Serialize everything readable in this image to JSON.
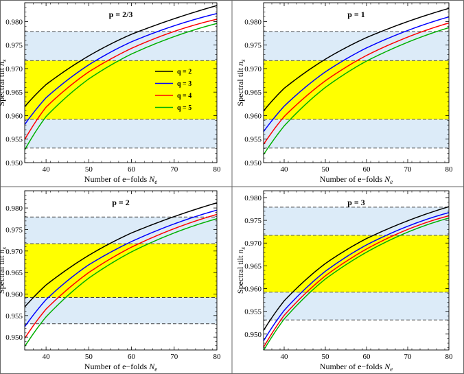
{
  "colors": {
    "q2": "#000000",
    "q3": "#0000ff",
    "q4": "#ff0000",
    "q5": "#00b000",
    "inner_band": "#ffff00",
    "outer_band": "#dcebf8",
    "band_border": "#444444"
  },
  "chart_data": [
    {
      "type": "line",
      "title": "p = 2/3",
      "xlabel": "Number of e−folds N_e",
      "ylabel": "Spectral tilt n_s",
      "xlim": [
        35,
        80
      ],
      "ylim": [
        0.95,
        0.984
      ],
      "xticks": [
        40,
        50,
        60,
        70,
        80
      ],
      "yticks": [
        0.95,
        0.955,
        0.96,
        0.965,
        0.97,
        0.975,
        0.98
      ],
      "ytick_labels": [
        "0.950",
        "0.955",
        "0.960",
        "0.965",
        "0.970",
        "0.975",
        "0.980"
      ],
      "bands": [
        {
          "name": "outer",
          "range": [
            0.9531,
            0.9779
          ]
        },
        {
          "name": "inner",
          "range": [
            0.9592,
            0.9717
          ]
        }
      ],
      "legend": {
        "position": "center-right",
        "entries": [
          "q = 2",
          "q = 3",
          "q = 4",
          "q = 5"
        ]
      },
      "series": [
        {
          "name": "q = 2",
          "x": [
            35,
            40,
            50,
            60,
            70,
            80
          ],
          "y": [
            0.9619,
            0.9666,
            0.9727,
            0.9773,
            0.9806,
            0.9834
          ]
        },
        {
          "name": "q = 3",
          "x": [
            35,
            40,
            50,
            60,
            70,
            80
          ],
          "y": [
            0.9581,
            0.9638,
            0.9708,
            0.9757,
            0.9791,
            0.9817
          ]
        },
        {
          "name": "q = 4",
          "x": [
            35,
            40,
            50,
            60,
            70,
            80
          ],
          "y": [
            0.9549,
            0.9618,
            0.9693,
            0.9743,
            0.9779,
            0.9805
          ]
        },
        {
          "name": "q = 5",
          "x": [
            35,
            40,
            50,
            60,
            70,
            80
          ],
          "y": [
            0.9527,
            0.9598,
            0.9678,
            0.9731,
            0.9768,
            0.9796
          ]
        }
      ]
    },
    {
      "type": "line",
      "title": "p = 1",
      "xlabel": "Number of e−folds N_e",
      "ylabel": "Spectral tilt n_s",
      "xlim": [
        35,
        80
      ],
      "ylim": [
        0.95,
        0.984
      ],
      "xticks": [
        40,
        50,
        60,
        70,
        80
      ],
      "yticks": [
        0.95,
        0.955,
        0.96,
        0.965,
        0.97,
        0.975,
        0.98
      ],
      "ytick_labels": [
        "0.950",
        "0.955",
        "0.960",
        "0.965",
        "0.970",
        "0.975",
        "0.980"
      ],
      "bands": [
        {
          "name": "outer",
          "range": [
            0.9531,
            0.9779
          ]
        },
        {
          "name": "inner",
          "range": [
            0.9592,
            0.9717
          ]
        }
      ],
      "series": [
        {
          "name": "q = 2",
          "x": [
            35,
            40,
            50,
            60,
            70,
            80
          ],
          "y": [
            0.961,
            0.9658,
            0.972,
            0.9766,
            0.98,
            0.9828
          ]
        },
        {
          "name": "q = 3",
          "x": [
            35,
            40,
            50,
            60,
            70,
            80
          ],
          "y": [
            0.9566,
            0.962,
            0.9693,
            0.9744,
            0.9781,
            0.981
          ]
        },
        {
          "name": "q = 4",
          "x": [
            35,
            40,
            50,
            60,
            70,
            80
          ],
          "y": [
            0.9539,
            0.9598,
            0.9674,
            0.9728,
            0.9767,
            0.9797
          ]
        },
        {
          "name": "q = 5",
          "x": [
            35,
            40,
            50,
            60,
            70,
            80
          ],
          "y": [
            0.9517,
            0.9578,
            0.966,
            0.9716,
            0.9756,
            0.9787
          ]
        }
      ]
    },
    {
      "type": "line",
      "title": "p = 2",
      "xlabel": "Number of e−folds N_e",
      "ylabel": "Spectral tilt n_s",
      "xlim": [
        35,
        80
      ],
      "ylim": [
        0.947,
        0.984
      ],
      "xticks": [
        40,
        50,
        60,
        70,
        80
      ],
      "yticks": [
        0.95,
        0.955,
        0.96,
        0.965,
        0.97,
        0.975,
        0.98
      ],
      "ytick_labels": [
        "0.950",
        "0.955",
        "0.960",
        "0.965",
        "0.970",
        "0.975",
        "0.980"
      ],
      "bands": [
        {
          "name": "outer",
          "range": [
            0.9531,
            0.9779
          ]
        },
        {
          "name": "inner",
          "range": [
            0.9592,
            0.9717
          ]
        }
      ],
      "series": [
        {
          "name": "q = 2",
          "x": [
            35,
            40,
            50,
            60,
            70,
            80
          ],
          "y": [
            0.957,
            0.9621,
            0.969,
            0.9742,
            0.978,
            0.9812
          ]
        },
        {
          "name": "q = 3",
          "x": [
            35,
            40,
            50,
            60,
            70,
            80
          ],
          "y": [
            0.9524,
            0.9587,
            0.9668,
            0.9722,
            0.9763,
            0.9795
          ]
        },
        {
          "name": "q = 4",
          "x": [
            35,
            40,
            50,
            60,
            70,
            80
          ],
          "y": [
            0.9497,
            0.9565,
            0.965,
            0.9709,
            0.9752,
            0.9785
          ]
        },
        {
          "name": "q = 5",
          "x": [
            35,
            40,
            50,
            60,
            70,
            80
          ],
          "y": [
            0.9478,
            0.9547,
            0.9637,
            0.9698,
            0.9742,
            0.9775
          ]
        }
      ]
    },
    {
      "type": "line",
      "title": "p = 3",
      "xlabel": "Number of e−folds N_e",
      "ylabel": "Spectral tilt n_s",
      "xlim": [
        35,
        80
      ],
      "ylim": [
        0.9465,
        0.9815
      ],
      "xticks": [
        40,
        50,
        60,
        70,
        80
      ],
      "yticks": [
        0.95,
        0.955,
        0.96,
        0.965,
        0.97,
        0.975,
        0.98
      ],
      "ytick_labels": [
        "0.950",
        "0.955",
        "0.960",
        "0.965",
        "0.970",
        "0.975",
        "0.980"
      ],
      "bands": [
        {
          "name": "outer",
          "range": [
            0.9531,
            0.9779
          ]
        },
        {
          "name": "inner",
          "range": [
            0.9592,
            0.9717
          ]
        }
      ],
      "series": [
        {
          "name": "q = 2",
          "x": [
            35,
            40,
            50,
            60,
            70,
            80
          ],
          "y": [
            0.9508,
            0.9573,
            0.9655,
            0.971,
            0.9749,
            0.978
          ]
        },
        {
          "name": "q = 3",
          "x": [
            35,
            40,
            50,
            60,
            70,
            80
          ],
          "y": [
            0.9485,
            0.9552,
            0.9638,
            0.9696,
            0.9737,
            0.9767
          ]
        },
        {
          "name": "q = 4",
          "x": [
            35,
            40,
            50,
            60,
            70,
            80
          ],
          "y": [
            0.9471,
            0.9541,
            0.9628,
            0.9687,
            0.973,
            0.976
          ]
        },
        {
          "name": "q = 5",
          "x": [
            35,
            40,
            50,
            60,
            70,
            80
          ],
          "y": [
            0.9464,
            0.9533,
            0.9621,
            0.968,
            0.9724,
            0.9755
          ]
        }
      ]
    }
  ]
}
